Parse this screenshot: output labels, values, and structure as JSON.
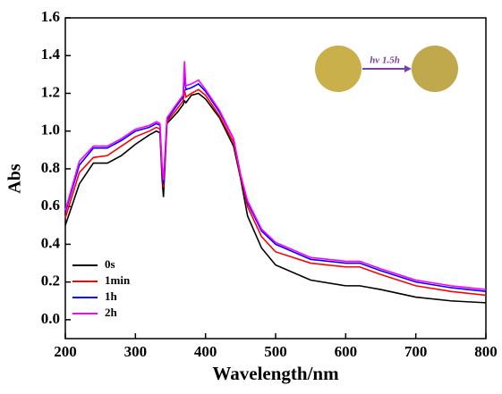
{
  "chart_data": {
    "type": "line",
    "x_label": "Wavelength/nm",
    "y_label": "Abs",
    "x": [
      200,
      220,
      240,
      260,
      280,
      300,
      320,
      330,
      335,
      338,
      340,
      345,
      360,
      368,
      370,
      372,
      380,
      390,
      400,
      420,
      440,
      450,
      460,
      480,
      500,
      550,
      600,
      620,
      650,
      700,
      750,
      800
    ],
    "series": [
      {
        "name": "0s",
        "color": "#000000",
        "values": [
          0.5,
          0.72,
          0.83,
          0.83,
          0.87,
          0.93,
          0.98,
          1.0,
          0.99,
          0.75,
          0.65,
          1.04,
          1.1,
          1.14,
          1.16,
          1.15,
          1.19,
          1.2,
          1.17,
          1.07,
          0.92,
          0.75,
          0.55,
          0.38,
          0.29,
          0.21,
          0.18,
          0.18,
          0.16,
          0.12,
          0.1,
          0.09
        ]
      },
      {
        "name": "1min",
        "color": "#ff0000",
        "values": [
          0.54,
          0.78,
          0.86,
          0.87,
          0.92,
          0.97,
          1.0,
          1.02,
          1.01,
          0.78,
          0.7,
          1.05,
          1.12,
          1.16,
          1.22,
          1.18,
          1.2,
          1.22,
          1.19,
          1.08,
          0.94,
          0.76,
          0.6,
          0.44,
          0.36,
          0.3,
          0.28,
          0.28,
          0.24,
          0.18,
          0.15,
          0.13
        ]
      },
      {
        "name": "1h",
        "color": "#0000ff",
        "values": [
          0.57,
          0.82,
          0.91,
          0.91,
          0.95,
          1.0,
          1.02,
          1.04,
          1.03,
          0.8,
          0.72,
          1.06,
          1.14,
          1.18,
          1.3,
          1.22,
          1.23,
          1.25,
          1.21,
          1.1,
          0.96,
          0.77,
          0.62,
          0.47,
          0.4,
          0.32,
          0.3,
          0.3,
          0.26,
          0.2,
          0.17,
          0.15
        ]
      },
      {
        "name": "2h",
        "color": "#ff00ff",
        "values": [
          0.58,
          0.84,
          0.92,
          0.92,
          0.96,
          1.01,
          1.03,
          1.05,
          1.04,
          0.82,
          0.74,
          1.07,
          1.15,
          1.19,
          1.37,
          1.24,
          1.25,
          1.27,
          1.22,
          1.11,
          0.96,
          0.77,
          0.63,
          0.48,
          0.41,
          0.33,
          0.31,
          0.31,
          0.27,
          0.21,
          0.18,
          0.16
        ]
      }
    ],
    "xlim": [
      200,
      800
    ],
    "xticks": [
      200,
      300,
      400,
      500,
      600,
      700,
      800
    ],
    "ylim": [
      -0.1,
      1.6
    ],
    "yticks": [
      {
        "value": 0,
        "label": "0.0"
      },
      0.2,
      0.4,
      0.6,
      0.8,
      {
        "value": 1,
        "label": "1.0"
      },
      1.2,
      1.4,
      1.6
    ],
    "legend": "lower-left",
    "annotation": "hv 1.5h"
  }
}
